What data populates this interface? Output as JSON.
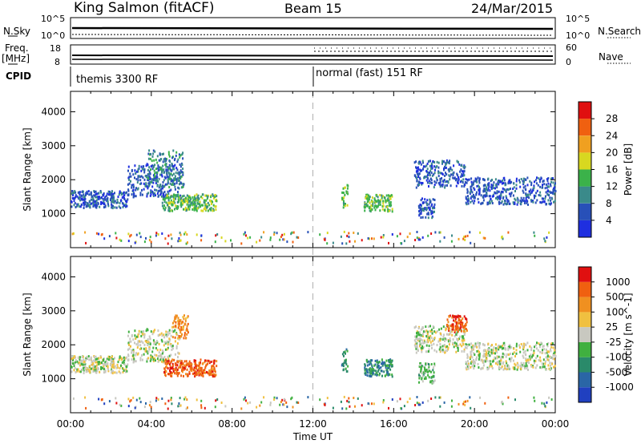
{
  "header": {
    "station": "King Salmon (fitACF)",
    "beam": "Beam 15",
    "date": "24/Mar/2015"
  },
  "top_panels": {
    "nsky_label": "N.Sky",
    "nsky_ticks": [
      "10^5",
      "10^0"
    ],
    "nsearch_label": "N.Search",
    "nsearch_ticks": [
      "10^5",
      "10^0"
    ],
    "freq_label_1": "Freq.",
    "freq_label_2": "[MHz]",
    "freq_ticks": [
      "18",
      "8"
    ],
    "nave_label": "Nave",
    "nave_ticks": [
      "60",
      "0"
    ],
    "cpid_label": "CPID",
    "cpid_segments": [
      {
        "text": "themis 3300 RF"
      },
      {
        "text": "normal (fast) 151 RF"
      }
    ]
  },
  "chart_data": [
    {
      "type": "heatmap",
      "title": "",
      "ylabel": "Slant Range [km]",
      "xlabel": "",
      "ylim": [
        0,
        4600
      ],
      "xlim": [
        0,
        24
      ],
      "yticks": [
        "1000",
        "2000",
        "3000",
        "4000"
      ],
      "colorbar_label": "Power [dB]",
      "colorbar_ticks": [
        "4",
        "8",
        "12",
        "16",
        "20",
        "24",
        "28"
      ],
      "colorbar_colors": [
        "#1f2fe0",
        "#2850b8",
        "#3a8a8a",
        "#3bb24a",
        "#d8d820",
        "#f0a020",
        "#f06010",
        "#e01010"
      ],
      "clusters": [
        {
          "t0": 0.0,
          "t1": 2.8,
          "r0": 1200,
          "r1": 1700,
          "level": 1
        },
        {
          "t0": 2.8,
          "t1": 5.4,
          "r0": 1500,
          "r1": 2500,
          "level": 1
        },
        {
          "t0": 3.8,
          "t1": 5.6,
          "r0": 1800,
          "r1": 2900,
          "level": 2
        },
        {
          "t0": 4.5,
          "t1": 7.2,
          "r0": 1100,
          "r1": 1600,
          "level": 3
        },
        {
          "t0": 13.4,
          "t1": 13.7,
          "r0": 1200,
          "r1": 1900,
          "level": 3
        },
        {
          "t0": 14.5,
          "t1": 15.9,
          "r0": 1100,
          "r1": 1600,
          "level": 3
        },
        {
          "t0": 17.2,
          "t1": 18.0,
          "r0": 900,
          "r1": 1500,
          "level": 1
        },
        {
          "t0": 17.0,
          "t1": 19.5,
          "r0": 1800,
          "r1": 2600,
          "level": 1
        },
        {
          "t0": 19.5,
          "t1": 24.0,
          "r0": 1300,
          "r1": 2100,
          "level": 1
        }
      ]
    },
    {
      "type": "heatmap",
      "title": "",
      "ylabel": "Slant Range [km]",
      "xlabel": "Time UT",
      "ylim": [
        0,
        4600
      ],
      "xlim": [
        0,
        24
      ],
      "yticks": [
        "1000",
        "2000",
        "3000",
        "4000"
      ],
      "xticks": [
        "00:00",
        "04:00",
        "08:00",
        "12:00",
        "16:00",
        "20:00",
        "00:00"
      ],
      "colorbar_label": "Velocity [m s^-1]",
      "colorbar_ticks": [
        "1000",
        "500",
        "100",
        "25",
        "-25",
        "-100",
        "-500",
        "-1000"
      ],
      "colorbar_colors": [
        "#2040c0",
        "#2a66a6",
        "#2a8a6a",
        "#40b040",
        "#c8c8c0",
        "#f0c040",
        "#f09020",
        "#f06010",
        "#e01010"
      ],
      "clusters": [
        {
          "t0": 0.0,
          "t1": 2.8,
          "r0": 1200,
          "r1": 1700,
          "level": 4
        },
        {
          "t0": 2.8,
          "t1": 5.4,
          "r0": 1500,
          "r1": 2500,
          "level": 4
        },
        {
          "t0": 4.6,
          "t1": 7.2,
          "r0": 1100,
          "r1": 1600,
          "level": 7
        },
        {
          "t0": 5.0,
          "t1": 5.8,
          "r0": 2200,
          "r1": 2900,
          "level": 6
        },
        {
          "t0": 13.4,
          "t1": 13.7,
          "r0": 1200,
          "r1": 1900,
          "level": 2
        },
        {
          "t0": 14.5,
          "t1": 15.9,
          "r0": 1100,
          "r1": 1600,
          "level": 2
        },
        {
          "t0": 17.2,
          "t1": 18.0,
          "r0": 900,
          "r1": 1500,
          "level": 3
        },
        {
          "t0": 17.0,
          "t1": 19.5,
          "r0": 1800,
          "r1": 2600,
          "level": 4
        },
        {
          "t0": 18.6,
          "t1": 19.6,
          "r0": 2400,
          "r1": 2900,
          "level": 7
        },
        {
          "t0": 19.5,
          "t1": 24.0,
          "r0": 1300,
          "r1": 2100,
          "level": 4
        }
      ]
    }
  ],
  "colors": {
    "guide_line": "#b0b0b0",
    "axis": "#000000"
  }
}
